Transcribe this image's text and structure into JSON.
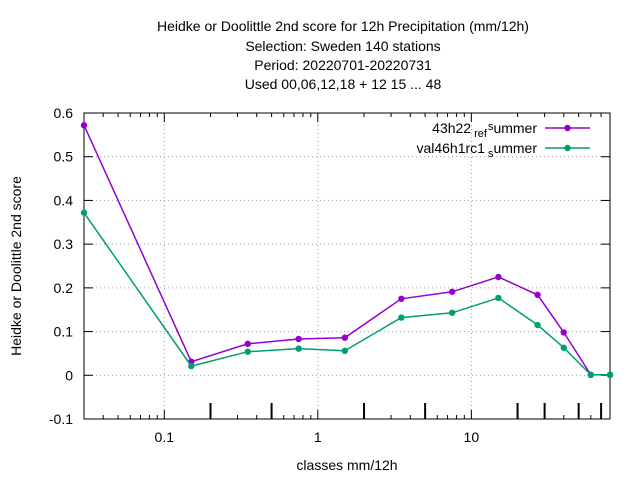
{
  "chart_data": {
    "type": "line",
    "title_lines": [
      "Heidke or Doolittle 2nd score  for 12h Precipitation (mm/12h)",
      "Selection: Sweden    140 stations",
      "Period: 20220701-20220731",
      "Used  00,06,12,18  + 12 15 ... 48"
    ],
    "xlabel": "classes mm/12h",
    "ylabel": "Heidke or Doolittle 2nd score",
    "x_scale": "log",
    "xlim": [
      0.03,
      80
    ],
    "ylim": [
      -0.1,
      0.6
    ],
    "x_ticks": [
      0.1,
      1,
      10
    ],
    "x_tick_labels": [
      "0.1",
      "1",
      "10"
    ],
    "x_class_marks": [
      0.2,
      0.5,
      2,
      5,
      20,
      30,
      50,
      70
    ],
    "y_ticks": [
      -0.1,
      0,
      0.1,
      0.2,
      0.3,
      0.4,
      0.5,
      0.6
    ],
    "y_tick_labels": [
      "-0.1",
      "0",
      "0.1",
      "0.2",
      "0.3",
      "0.4",
      "0.5",
      "0.6"
    ],
    "grid": true,
    "legend_position": "top-right",
    "x": [
      0.03,
      0.15,
      0.35,
      0.75,
      1.5,
      3.5,
      7.5,
      15,
      27,
      40,
      60,
      80
    ],
    "series": [
      {
        "name": "43h22_ref_summer",
        "legend_parts": [
          "43h22",
          "ref",
          "s",
          "ummer"
        ],
        "color": "#9400d3",
        "values": [
          0.572,
          0.031,
          0.072,
          0.083,
          0.086,
          0.175,
          0.191,
          0.225,
          0.184,
          0.098,
          0.001,
          0.001
        ]
      },
      {
        "name": "val46h1rc1_summer",
        "legend_parts": [
          "val46h1rc1",
          "",
          "s",
          "ummer"
        ],
        "color": "#009e73",
        "values": [
          0.372,
          0.021,
          0.054,
          0.061,
          0.056,
          0.132,
          0.143,
          0.177,
          0.115,
          0.063,
          0.001,
          0.001
        ]
      }
    ]
  }
}
